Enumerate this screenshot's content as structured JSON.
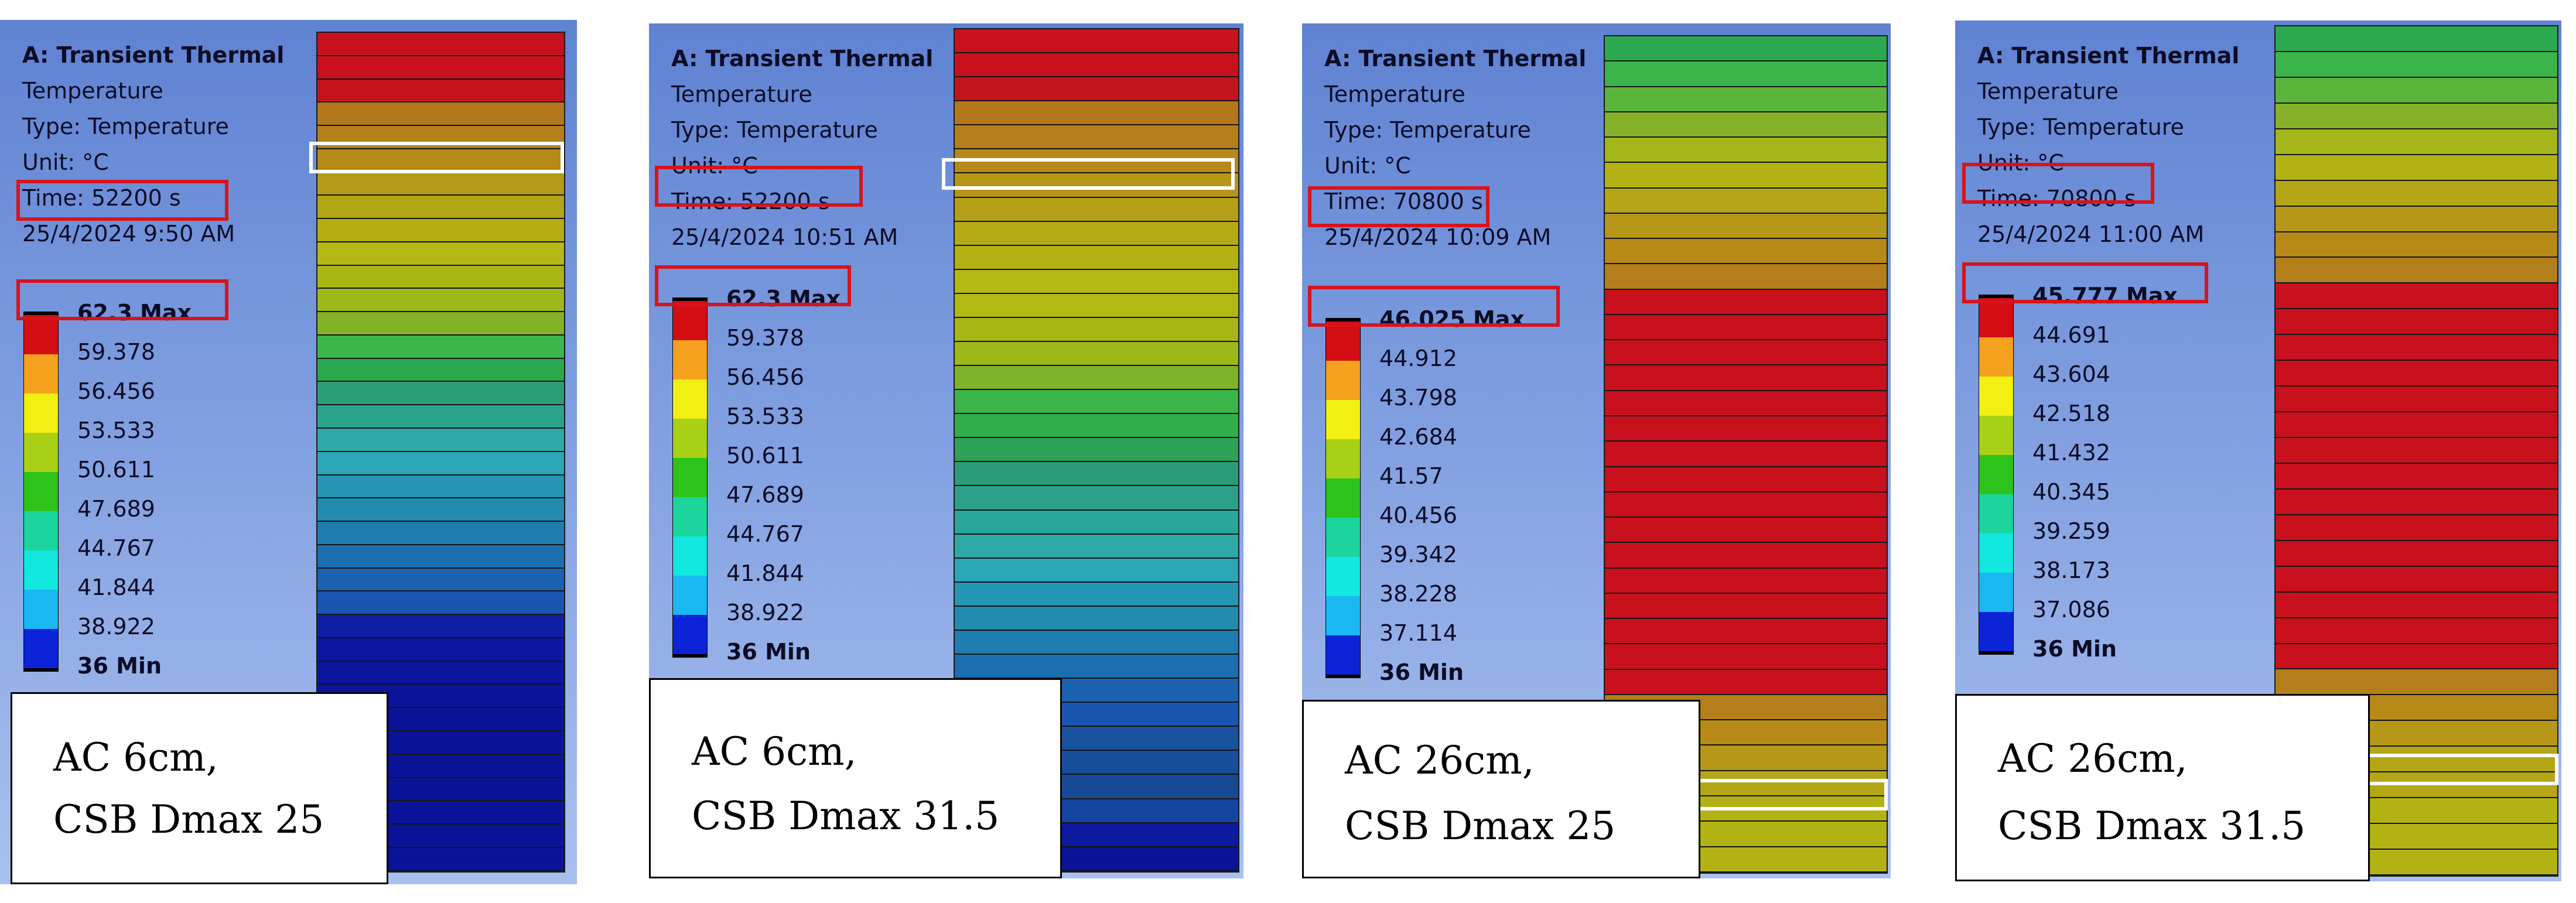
{
  "panels": [
    {
      "title": "A: Transient Thermal",
      "quantity": "Temperature",
      "type": "Type: Temperature",
      "unit": "Unit: °C",
      "time": "Time: 52200 s",
      "datetime": "25/4/2024 9:50 AM",
      "legend": [
        "62.3 Max",
        "59.378",
        "56.456",
        "53.533",
        "50.611",
        "47.689",
        "44.767",
        "41.844",
        "38.922",
        "36 Min"
      ],
      "caption": [
        "AC 6cm,",
        "CSB Dmax 25"
      ],
      "bar_colors": [
        "#c8111c",
        "#c8111c",
        "#c3141c",
        "#b2781a",
        "#b47f1a",
        "#b78917",
        "#b49a18",
        "#b2a516",
        "#b3ad12",
        "#b5b713",
        "#a9b716",
        "#9db819",
        "#84b226",
        "#3cb64a",
        "#2aa94e",
        "#2b9e78",
        "#2aa38d",
        "#2daaa8",
        "#2aa6b6",
        "#2596b4",
        "#218bb0",
        "#1f7cb0",
        "#1b6eb0",
        "#1a62b0",
        "#1a56b0",
        "#0e1fa6",
        "#0b17a0",
        "#0b149c",
        "#0a139a",
        "#0a1398",
        "#0a1398",
        "#0a1398",
        "#0a1398",
        "#0a1398",
        "#0a1398",
        "#0a1398"
      ]
    },
    {
      "title": "A: Transient Thermal",
      "quantity": "Temperature",
      "type": "Type: Temperature",
      "unit": "Unit: °C",
      "time": "Time: 52200 s",
      "datetime": "25/4/2024 10:51 AM",
      "legend": [
        "62.3 Max",
        "59.378",
        "56.456",
        "53.533",
        "50.611",
        "47.689",
        "44.767",
        "41.844",
        "38.922",
        "36 Min"
      ],
      "caption": [
        "AC 6cm,",
        "CSB Dmax 31.5"
      ],
      "bar_colors": [
        "#c8111c",
        "#c8111c",
        "#c3141c",
        "#b2781a",
        "#b47f1a",
        "#b78917",
        "#b59617",
        "#b4a016",
        "#b4aa14",
        "#b3b212",
        "#b5b713",
        "#b3b913",
        "#a9b716",
        "#9db819",
        "#7db429",
        "#3bb54a",
        "#2fae4c",
        "#2ca157",
        "#2a9d78",
        "#2aa08a",
        "#2ba69a",
        "#2daaa8",
        "#2aa6b6",
        "#2596b4",
        "#218bb0",
        "#1f7cb0",
        "#1b6eb0",
        "#1a62b0",
        "#1a56b0",
        "#19529f",
        "#184d9a",
        "#174a96",
        "#1545a0",
        "#0c1aa0",
        "#0a1398"
      ]
    },
    {
      "title": "A: Transient Thermal",
      "quantity": "Temperature",
      "type": "Type: Temperature",
      "unit": "Unit: °C",
      "time": "Time: 70800 s",
      "datetime": "25/4/2024 10:09 AM",
      "legend": [
        "46.025 Max",
        "44.912",
        "43.798",
        "42.684",
        "41.57",
        "40.456",
        "39.342",
        "38.228",
        "37.114",
        "36 Min"
      ],
      "caption": [
        "AC 26cm,",
        "CSB Dmax 25"
      ],
      "bar_colors": [
        "#2aa94e",
        "#3bb54a",
        "#5cb53b",
        "#86b229",
        "#a5b61b",
        "#b3b214",
        "#b4a616",
        "#b69718",
        "#b78917",
        "#b47f1a",
        "#c8111c",
        "#c8111c",
        "#c8111c",
        "#c8111c",
        "#c8111c",
        "#c8111c",
        "#c8111c",
        "#c8111c",
        "#c8111c",
        "#c8111c",
        "#c8111c",
        "#c8111c",
        "#c8111c",
        "#c8111c",
        "#c8111c",
        "#c8111c",
        "#b47f1a",
        "#b78917",
        "#b69718",
        "#b4a616",
        "#b3b214",
        "#b3b214",
        "#b3b214"
      ]
    },
    {
      "title": "A: Transient Thermal",
      "quantity": "Temperature",
      "type": "Type: Temperature",
      "unit": "Unit: °C",
      "time": "Time: 70800 s",
      "datetime": "25/4/2024 11:00 AM",
      "legend": [
        "45.777 Max",
        "44.691",
        "43.604",
        "42.518",
        "41.432",
        "40.345",
        "39.259",
        "38.173",
        "37.086",
        "36 Min"
      ],
      "caption": [
        "AC 26cm,",
        "CSB Dmax 31.5"
      ],
      "bar_colors": [
        "#2aa94e",
        "#3bb54a",
        "#5cb53b",
        "#86b229",
        "#a5b61b",
        "#b3b214",
        "#b4a616",
        "#b69718",
        "#b78917",
        "#b47f1a",
        "#c8111c",
        "#c8111c",
        "#c8111c",
        "#c8111c",
        "#c8111c",
        "#c8111c",
        "#c8111c",
        "#c8111c",
        "#c8111c",
        "#c8111c",
        "#c8111c",
        "#c8111c",
        "#c8111c",
        "#c8111c",
        "#c8111c",
        "#b47f1a",
        "#b78917",
        "#b69718",
        "#b4a616",
        "#b4a616",
        "#b3b214",
        "#b3b214",
        "#b3b214"
      ]
    }
  ],
  "colorscale": [
    "#d40d13",
    "#f5a11d",
    "#f2ef13",
    "#a8d116",
    "#2dc31b",
    "#1cd59c",
    "#12e7e0",
    "#1ab8f2",
    "#0b24d8"
  ]
}
